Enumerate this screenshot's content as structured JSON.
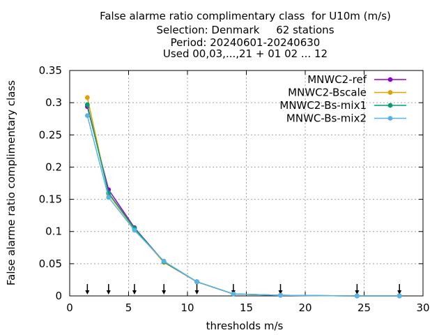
{
  "chart_data": {
    "type": "line",
    "title_lines": [
      "False alarme ratio complimentary class  for U10m (m/s)",
      "Selection: Denmark     62 stations",
      "Period: 20240601-20240630",
      "Used 00,03,...,21 + 01 02 ... 12"
    ],
    "xlabel": "thresholds m/s",
    "ylabel": "False alarme ratio complimentary class",
    "xlim": [
      0,
      30
    ],
    "ylim": [
      0,
      0.35
    ],
    "xticks": [
      0,
      5,
      10,
      15,
      20,
      25,
      30
    ],
    "yticks": [
      0,
      0.05,
      0.1,
      0.15,
      0.2,
      0.25,
      0.3,
      0.35
    ],
    "xtick_labels": [
      "0",
      "5",
      "10",
      "15",
      "20",
      "25",
      "30"
    ],
    "ytick_labels": [
      "0",
      "0.05",
      "0.1",
      "0.15",
      "0.2",
      "0.25",
      "0.3",
      "0.35"
    ],
    "grid": true,
    "legend_position": "top-right",
    "arrow_thresholds": [
      1.5,
      3.3,
      5.5,
      8.0,
      10.8,
      13.9,
      17.9,
      24.4,
      28.0
    ],
    "series": [
      {
        "name": "MNWC2-ref",
        "color": "#9400d3",
        "x": [
          1.5,
          3.3,
          5.5,
          8.0,
          10.8,
          13.9,
          17.9,
          24.4,
          28.0
        ],
        "y": [
          0.294,
          0.165,
          0.106,
          0.053,
          0.022,
          0.003,
          0.001,
          0.0,
          0.0
        ]
      },
      {
        "name": "MNWC2-Bscale",
        "color": "#e69f00",
        "x": [
          1.5,
          3.3,
          5.5,
          8.0,
          10.8,
          13.9,
          17.9,
          24.4,
          28.0
        ],
        "y": [
          0.308,
          0.158,
          0.104,
          0.052,
          0.022,
          0.003,
          0.001,
          0.0,
          0.0
        ]
      },
      {
        "name": "MNWC2-Bs-mix1",
        "color": "#009e73",
        "x": [
          1.5,
          3.3,
          5.5,
          8.0,
          10.8,
          13.9,
          17.9,
          24.4,
          28.0
        ],
        "y": [
          0.297,
          0.16,
          0.105,
          0.053,
          0.022,
          0.003,
          0.001,
          0.0,
          0.0
        ]
      },
      {
        "name": "MNWC-Bs-mix2",
        "color": "#56b4e9",
        "x": [
          1.5,
          3.3,
          5.5,
          8.0,
          10.8,
          13.9,
          17.9,
          24.4,
          28.0
        ],
        "y": [
          0.28,
          0.153,
          0.102,
          0.054,
          0.022,
          0.003,
          0.001,
          0.0,
          0.0
        ]
      }
    ]
  }
}
